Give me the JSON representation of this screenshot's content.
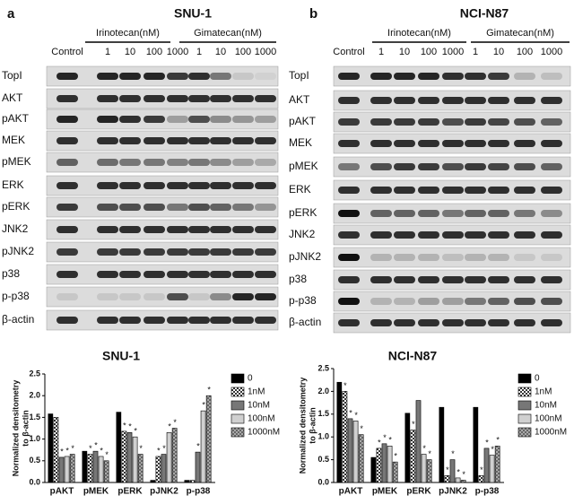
{
  "blots": [
    {
      "label": "a",
      "title": "SNU-1",
      "groups": [
        "Irinotecan(nM)",
        "Gimatecan(nM)"
      ],
      "lanes": [
        "Control",
        "1",
        "10",
        "100",
        "1000",
        "1",
        "10",
        "100",
        "1000"
      ],
      "rows": [
        "TopI",
        "AKT",
        "pAKT",
        "MEK",
        "pMEK",
        "ERK",
        "pERK",
        "JNK2",
        "pJNK2",
        "p38",
        "p-p38",
        "β-actin"
      ]
    },
    {
      "label": "b",
      "title": "NCI-N87",
      "groups": [
        "Irinotecan(nM)",
        "Gimatecan(nM)"
      ],
      "lanes": [
        "Control",
        "1",
        "10",
        "100",
        "1000",
        "1",
        "10",
        "100",
        "1000"
      ],
      "rows": [
        "TopI",
        "AKT",
        "pAKT",
        "MEK",
        "pMEK",
        "ERK",
        "pERK",
        "JNK2",
        "pJNK2",
        "p38",
        "p-p38",
        "β-actin"
      ]
    }
  ],
  "chart_data": [
    {
      "type": "bar",
      "title": "SNU-1",
      "ylabel": [
        "Normalized densitometry",
        "to β-actin"
      ],
      "categories": [
        "pAKT",
        "pMEK",
        "pERK",
        "pJNK2",
        "p-p38"
      ],
      "ylim": [
        0,
        2.5
      ],
      "yticks": [
        {
          "value": 0,
          "label": "0.0"
        },
        0.5,
        {
          "value": 1,
          "label": "1.0"
        },
        1.5,
        {
          "value": 2,
          "label": "2.0"
        },
        2.5
      ],
      "series": [
        {
          "name": "0",
          "color": "#000000",
          "values": [
            1.58,
            0.72,
            1.62,
            0.05,
            0.05
          ],
          "sig": [
            null,
            null,
            null,
            null,
            null
          ]
        },
        {
          "name": "1nM",
          "color": "#ffffff",
          "values": [
            1.5,
            0.65,
            1.18,
            0.6,
            0.05
          ],
          "sig": [
            null,
            "*",
            "*",
            "*",
            null
          ]
        },
        {
          "name": "10nM",
          "color": "#777777",
          "values": [
            0.58,
            0.72,
            1.15,
            0.65,
            0.7
          ],
          "sig": [
            "*",
            "*",
            "*",
            "*",
            "*"
          ]
        },
        {
          "name": "100nM",
          "color": "#d0d0d0",
          "values": [
            0.6,
            0.6,
            1.05,
            1.15,
            1.65
          ],
          "sig": [
            "*",
            "*",
            "*",
            "*",
            "*"
          ]
        },
        {
          "name": "1000nM",
          "color": "#9a9a9a",
          "values": [
            0.65,
            0.5,
            0.65,
            1.25,
            2.0
          ],
          "sig": [
            "*",
            "*",
            "*",
            "*",
            "*"
          ]
        }
      ]
    },
    {
      "type": "bar",
      "title": "NCI-N87",
      "ylabel": [
        "Normalized densitometry",
        "to β-actin"
      ],
      "categories": [
        "pAKT",
        "pMEK",
        "pERK",
        "pJNK2",
        "p-p38"
      ],
      "ylim": [
        0,
        2.5
      ],
      "yticks": [
        {
          "value": 0,
          "label": "0.0"
        },
        0.5,
        {
          "value": 1,
          "label": "1.0"
        },
        1.5,
        {
          "value": 2,
          "label": "2.0"
        },
        2.5
      ],
      "series": [
        {
          "name": "0",
          "color": "#000000",
          "values": [
            2.2,
            0.55,
            1.52,
            1.65,
            1.65
          ],
          "sig": [
            null,
            null,
            null,
            null,
            null
          ]
        },
        {
          "name": "1nM",
          "color": "#ffffff",
          "values": [
            2.0,
            0.75,
            1.15,
            0.15,
            0.15
          ],
          "sig": [
            "*",
            "*",
            "*",
            "*",
            "*"
          ]
        },
        {
          "name": "10nM",
          "color": "#777777",
          "values": [
            1.4,
            0.85,
            1.8,
            0.5,
            0.75
          ],
          "sig": [
            "*",
            "*",
            null,
            "*",
            "*"
          ]
        },
        {
          "name": "100nM",
          "color": "#d0d0d0",
          "values": [
            1.35,
            0.8,
            0.62,
            0.1,
            0.6
          ],
          "sig": [
            "*",
            "*",
            "*",
            "*",
            "*"
          ]
        },
        {
          "name": "1000nM",
          "color": "#9a9a9a",
          "values": [
            1.05,
            0.45,
            0.5,
            0.05,
            0.8
          ],
          "sig": [
            "*",
            "*",
            "*",
            "*",
            "*"
          ]
        }
      ]
    }
  ]
}
